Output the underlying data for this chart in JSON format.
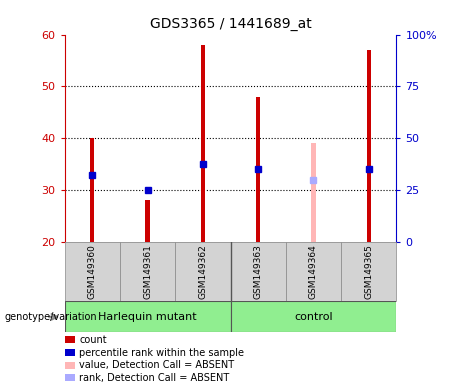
{
  "title": "GDS3365 / 1441689_at",
  "samples": [
    "GSM149360",
    "GSM149361",
    "GSM149362",
    "GSM149363",
    "GSM149364",
    "GSM149365"
  ],
  "bar_top_values": [
    40,
    28,
    58,
    48,
    39,
    57
  ],
  "bar_bottom": 20,
  "bar_colors": [
    "#cc0000",
    "#cc0000",
    "#cc0000",
    "#cc0000",
    "#ffb6b6",
    "#cc0000"
  ],
  "blue_dot_values": [
    33,
    30,
    35,
    34,
    32,
    34
  ],
  "blue_dot_colors": [
    "#0000cc",
    "#0000cc",
    "#0000cc",
    "#0000cc",
    "#aaaaff",
    "#0000cc"
  ],
  "bar_width": 0.08,
  "ylim_left": [
    20,
    60
  ],
  "ylim_right": [
    0,
    100
  ],
  "right_yticks": [
    0,
    25,
    50,
    75,
    100
  ],
  "right_yticklabels": [
    "0",
    "25",
    "50",
    "75",
    "100%"
  ],
  "left_yticks": [
    20,
    30,
    40,
    50,
    60
  ],
  "dotted_lines": [
    30,
    40,
    50
  ],
  "left_axis_color": "#cc0000",
  "right_axis_color": "#0000cc",
  "group_splits": [
    3
  ],
  "group_names": [
    "Harlequin mutant",
    "control"
  ],
  "legend_items": [
    {
      "color": "#cc0000",
      "label": "count",
      "marker": "s"
    },
    {
      "color": "#0000cc",
      "label": "percentile rank within the sample",
      "marker": "s"
    },
    {
      "color": "#ffb6b6",
      "label": "value, Detection Call = ABSENT",
      "marker": "s"
    },
    {
      "color": "#aaaaff",
      "label": "rank, Detection Call = ABSENT",
      "marker": "s"
    }
  ],
  "background_color": "#ffffff",
  "plot_bg_color": "#ffffff"
}
